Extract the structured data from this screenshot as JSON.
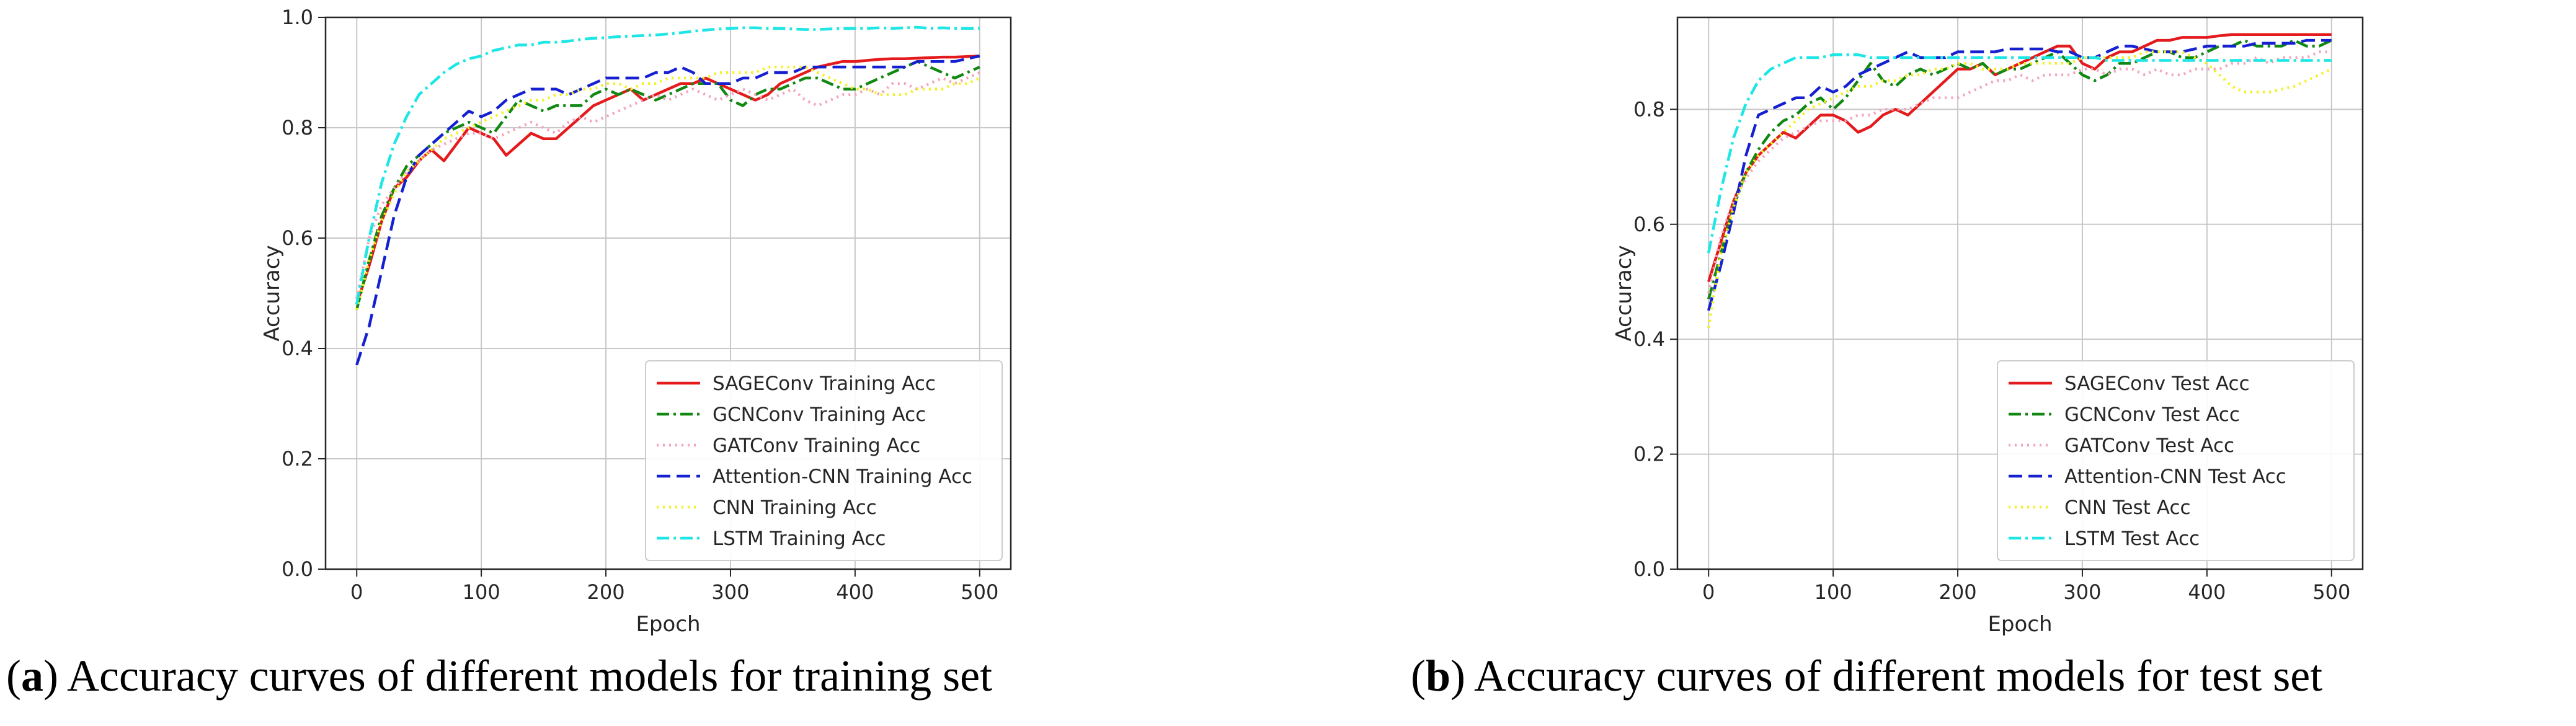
{
  "chart_data": [
    {
      "type": "line",
      "panel": "a",
      "caption_letter": "a",
      "caption_text": "Accuracy curves of different models for training set",
      "xlabel": "Epoch",
      "ylabel": "Accuracy",
      "xlim": [
        -25,
        525
      ],
      "ylim": [
        0,
        1.0
      ],
      "xticks": [
        0,
        100,
        200,
        300,
        400,
        500
      ],
      "yticks": [
        0.0,
        0.2,
        0.4,
        0.6,
        0.8,
        1.0
      ],
      "ytick_labels": [
        "0.0",
        "0.2",
        "0.4",
        "0.6",
        "0.8",
        "1.0"
      ],
      "grid": true,
      "legend_position": "lower-right",
      "x": [
        0,
        10,
        20,
        30,
        40,
        50,
        60,
        70,
        80,
        90,
        100,
        110,
        120,
        130,
        140,
        150,
        160,
        170,
        180,
        190,
        200,
        210,
        220,
        230,
        240,
        250,
        260,
        270,
        280,
        290,
        300,
        310,
        320,
        330,
        340,
        350,
        360,
        370,
        380,
        390,
        400,
        410,
        420,
        430,
        440,
        450,
        460,
        470,
        480,
        490,
        500
      ],
      "series": [
        {
          "name": "SAGEConv Training Acc",
          "color": "#e41a1c",
          "dash": "solid",
          "values": [
            0.48,
            0.55,
            0.63,
            0.69,
            0.71,
            0.74,
            0.76,
            0.74,
            0.77,
            0.8,
            0.79,
            0.78,
            0.75,
            0.77,
            0.79,
            0.78,
            0.78,
            0.8,
            0.82,
            0.84,
            0.85,
            0.86,
            0.87,
            0.85,
            0.86,
            0.87,
            0.88,
            0.88,
            0.89,
            0.88,
            0.87,
            0.86,
            0.85,
            0.86,
            0.88,
            0.89,
            0.9,
            0.91,
            0.915,
            0.92,
            0.92,
            0.922,
            0.924,
            0.925,
            0.925,
            0.926,
            0.927,
            0.928,
            0.928,
            0.929,
            0.93
          ]
        },
        {
          "name": "GCNConv Training Acc",
          "color": "#118811",
          "dash": "dashdot",
          "values": [
            0.47,
            0.56,
            0.64,
            0.69,
            0.73,
            0.75,
            0.77,
            0.79,
            0.8,
            0.81,
            0.8,
            0.79,
            0.82,
            0.85,
            0.84,
            0.83,
            0.84,
            0.84,
            0.84,
            0.86,
            0.87,
            0.86,
            0.87,
            0.86,
            0.85,
            0.86,
            0.87,
            0.88,
            0.88,
            0.88,
            0.85,
            0.84,
            0.86,
            0.87,
            0.87,
            0.88,
            0.89,
            0.89,
            0.88,
            0.87,
            0.87,
            0.88,
            0.89,
            0.9,
            0.91,
            0.92,
            0.91,
            0.9,
            0.89,
            0.9,
            0.91
          ]
        },
        {
          "name": "GATConv Training Acc",
          "color": "#f4a3bb",
          "dash": "dotted",
          "values": [
            0.49,
            0.6,
            0.66,
            0.69,
            0.72,
            0.74,
            0.76,
            0.77,
            0.78,
            0.79,
            0.79,
            0.78,
            0.79,
            0.8,
            0.81,
            0.8,
            0.79,
            0.81,
            0.82,
            0.81,
            0.82,
            0.83,
            0.84,
            0.85,
            0.86,
            0.85,
            0.86,
            0.87,
            0.86,
            0.85,
            0.86,
            0.87,
            0.86,
            0.85,
            0.86,
            0.87,
            0.85,
            0.84,
            0.85,
            0.86,
            0.86,
            0.87,
            0.86,
            0.88,
            0.88,
            0.87,
            0.88,
            0.89,
            0.88,
            0.89,
            0.9
          ]
        },
        {
          "name": "Attention-CNN Training Acc",
          "color": "#1520d0",
          "dash": "dashed",
          "values": [
            0.37,
            0.44,
            0.54,
            0.64,
            0.71,
            0.75,
            0.77,
            0.79,
            0.81,
            0.83,
            0.82,
            0.83,
            0.85,
            0.86,
            0.87,
            0.87,
            0.87,
            0.86,
            0.87,
            0.88,
            0.89,
            0.89,
            0.89,
            0.89,
            0.9,
            0.9,
            0.91,
            0.9,
            0.88,
            0.88,
            0.88,
            0.89,
            0.89,
            0.9,
            0.9,
            0.9,
            0.91,
            0.91,
            0.91,
            0.91,
            0.91,
            0.91,
            0.91,
            0.91,
            0.91,
            0.92,
            0.92,
            0.92,
            0.92,
            0.925,
            0.93
          ]
        },
        {
          "name": "CNN Training Acc",
          "color": "#f2f21a",
          "dash": "dotted",
          "values": [
            0.47,
            0.56,
            0.63,
            0.68,
            0.72,
            0.74,
            0.76,
            0.78,
            0.79,
            0.8,
            0.81,
            0.82,
            0.83,
            0.84,
            0.85,
            0.85,
            0.86,
            0.86,
            0.87,
            0.87,
            0.88,
            0.88,
            0.87,
            0.88,
            0.88,
            0.89,
            0.89,
            0.89,
            0.89,
            0.9,
            0.9,
            0.9,
            0.9,
            0.91,
            0.91,
            0.91,
            0.91,
            0.9,
            0.89,
            0.88,
            0.87,
            0.87,
            0.86,
            0.86,
            0.86,
            0.87,
            0.87,
            0.87,
            0.88,
            0.88,
            0.89
          ]
        },
        {
          "name": "LSTM Training Acc",
          "color": "#1ee6e6",
          "dash": "dashdot",
          "values": [
            0.48,
            0.6,
            0.7,
            0.77,
            0.82,
            0.86,
            0.88,
            0.9,
            0.915,
            0.925,
            0.93,
            0.94,
            0.945,
            0.95,
            0.95,
            0.955,
            0.955,
            0.957,
            0.96,
            0.962,
            0.963,
            0.965,
            0.966,
            0.967,
            0.968,
            0.97,
            0.972,
            0.975,
            0.977,
            0.979,
            0.98,
            0.981,
            0.981,
            0.98,
            0.98,
            0.979,
            0.978,
            0.978,
            0.979,
            0.98,
            0.98,
            0.98,
            0.981,
            0.98,
            0.981,
            0.982,
            0.98,
            0.981,
            0.98,
            0.98,
            0.98
          ]
        }
      ]
    },
    {
      "type": "line",
      "panel": "b",
      "caption_letter": "b",
      "caption_text": "Accuracy curves of different models for test set",
      "xlabel": "Epoch",
      "ylabel": "Accuracy",
      "xlim": [
        -25,
        525
      ],
      "ylim": [
        0,
        0.96
      ],
      "xticks": [
        0,
        100,
        200,
        300,
        400,
        500
      ],
      "yticks": [
        0.0,
        0.2,
        0.4,
        0.6,
        0.8
      ],
      "ytick_labels": [
        "0.0",
        "0.2",
        "0.4",
        "0.6",
        "0.8"
      ],
      "grid": true,
      "legend_position": "lower-right",
      "x": [
        0,
        10,
        20,
        30,
        40,
        50,
        60,
        70,
        80,
        90,
        100,
        110,
        120,
        130,
        140,
        150,
        160,
        170,
        180,
        190,
        200,
        210,
        220,
        230,
        240,
        250,
        260,
        270,
        280,
        290,
        300,
        310,
        320,
        330,
        340,
        350,
        360,
        370,
        380,
        390,
        400,
        410,
        420,
        430,
        440,
        450,
        460,
        470,
        480,
        490,
        500
      ],
      "series": [
        {
          "name": "SAGEConv Test Acc",
          "color": "#e41a1c",
          "dash": "solid",
          "values": [
            0.5,
            0.57,
            0.64,
            0.69,
            0.72,
            0.74,
            0.76,
            0.75,
            0.77,
            0.79,
            0.79,
            0.78,
            0.76,
            0.77,
            0.79,
            0.8,
            0.79,
            0.81,
            0.83,
            0.85,
            0.87,
            0.87,
            0.88,
            0.86,
            0.87,
            0.88,
            0.89,
            0.9,
            0.91,
            0.91,
            0.88,
            0.87,
            0.89,
            0.9,
            0.9,
            0.91,
            0.92,
            0.92,
            0.925,
            0.925,
            0.925,
            0.928,
            0.93,
            0.93,
            0.93,
            0.93,
            0.93,
            0.93,
            0.93,
            0.93,
            0.93
          ]
        },
        {
          "name": "GCNConv Test Acc",
          "color": "#118811",
          "dash": "dashdot",
          "values": [
            0.47,
            0.55,
            0.63,
            0.69,
            0.73,
            0.76,
            0.78,
            0.79,
            0.81,
            0.82,
            0.8,
            0.82,
            0.85,
            0.88,
            0.85,
            0.84,
            0.86,
            0.87,
            0.86,
            0.87,
            0.88,
            0.87,
            0.88,
            0.86,
            0.87,
            0.87,
            0.88,
            0.89,
            0.9,
            0.88,
            0.86,
            0.85,
            0.86,
            0.88,
            0.88,
            0.89,
            0.9,
            0.9,
            0.89,
            0.89,
            0.9,
            0.91,
            0.91,
            0.92,
            0.91,
            0.91,
            0.91,
            0.92,
            0.91,
            0.91,
            0.92
          ]
        },
        {
          "name": "GATConv Test Acc",
          "color": "#f4a3bb",
          "dash": "dotted",
          "values": [
            0.48,
            0.58,
            0.64,
            0.68,
            0.71,
            0.73,
            0.75,
            0.76,
            0.77,
            0.78,
            0.78,
            0.78,
            0.79,
            0.79,
            0.8,
            0.8,
            0.8,
            0.81,
            0.82,
            0.82,
            0.82,
            0.83,
            0.84,
            0.85,
            0.85,
            0.86,
            0.85,
            0.86,
            0.86,
            0.86,
            0.87,
            0.87,
            0.86,
            0.87,
            0.87,
            0.86,
            0.87,
            0.86,
            0.86,
            0.87,
            0.87,
            0.87,
            0.88,
            0.88,
            0.89,
            0.88,
            0.89,
            0.89,
            0.89,
            0.9,
            0.9
          ]
        },
        {
          "name": "Attention-CNN Test Acc",
          "color": "#1520d0",
          "dash": "dashed",
          "values": [
            0.45,
            0.53,
            0.62,
            0.72,
            0.79,
            0.8,
            0.81,
            0.82,
            0.82,
            0.84,
            0.83,
            0.84,
            0.86,
            0.87,
            0.88,
            0.89,
            0.9,
            0.89,
            0.89,
            0.89,
            0.9,
            0.9,
            0.9,
            0.9,
            0.905,
            0.905,
            0.905,
            0.905,
            0.9,
            0.9,
            0.89,
            0.89,
            0.9,
            0.91,
            0.91,
            0.905,
            0.9,
            0.9,
            0.9,
            0.905,
            0.91,
            0.91,
            0.91,
            0.91,
            0.915,
            0.915,
            0.915,
            0.915,
            0.92,
            0.92,
            0.92
          ]
        },
        {
          "name": "CNN Test Acc",
          "color": "#f2f21a",
          "dash": "dotted",
          "values": [
            0.42,
            0.55,
            0.63,
            0.69,
            0.72,
            0.74,
            0.76,
            0.78,
            0.8,
            0.81,
            0.82,
            0.83,
            0.84,
            0.84,
            0.85,
            0.85,
            0.86,
            0.86,
            0.87,
            0.87,
            0.88,
            0.88,
            0.87,
            0.87,
            0.87,
            0.88,
            0.88,
            0.88,
            0.88,
            0.88,
            0.89,
            0.89,
            0.89,
            0.89,
            0.89,
            0.9,
            0.9,
            0.9,
            0.9,
            0.89,
            0.88,
            0.86,
            0.84,
            0.83,
            0.83,
            0.83,
            0.835,
            0.84,
            0.85,
            0.86,
            0.87
          ]
        },
        {
          "name": "LSTM Test Acc",
          "color": "#1ee6e6",
          "dash": "dashdot",
          "values": [
            0.55,
            0.66,
            0.75,
            0.81,
            0.85,
            0.87,
            0.88,
            0.89,
            0.89,
            0.89,
            0.895,
            0.895,
            0.895,
            0.89,
            0.89,
            0.89,
            0.89,
            0.89,
            0.89,
            0.89,
            0.89,
            0.89,
            0.89,
            0.89,
            0.89,
            0.89,
            0.89,
            0.89,
            0.89,
            0.89,
            0.89,
            0.89,
            0.885,
            0.885,
            0.885,
            0.885,
            0.885,
            0.885,
            0.885,
            0.885,
            0.885,
            0.885,
            0.885,
            0.885,
            0.885,
            0.885,
            0.885,
            0.885,
            0.885,
            0.885,
            0.885
          ]
        }
      ]
    }
  ]
}
